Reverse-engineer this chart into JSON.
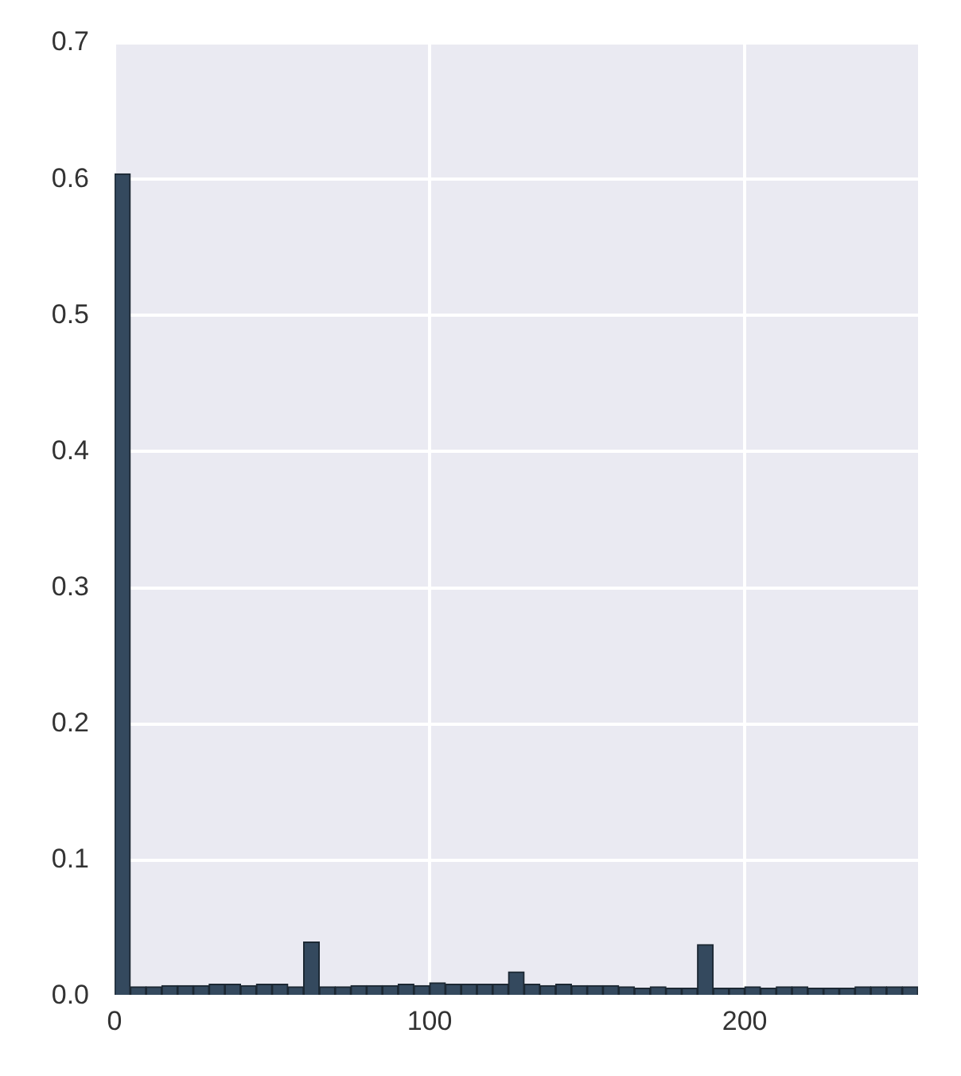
{
  "chart_data": {
    "type": "histogram",
    "color": "#34495e",
    "bins": [
      0,
      5,
      10,
      15,
      20,
      25,
      30,
      35,
      40,
      45,
      50,
      55,
      60,
      65,
      70,
      75,
      80,
      85,
      90,
      95,
      100,
      105,
      110,
      115,
      120,
      125,
      130,
      135,
      140,
      145,
      150,
      155,
      160,
      165,
      170,
      175,
      180,
      185,
      190,
      195,
      200,
      205,
      210,
      215,
      220,
      225,
      230,
      235,
      240,
      245,
      250,
      255
    ],
    "values": [
      0.604,
      0.007,
      0.007,
      0.008,
      0.008,
      0.008,
      0.009,
      0.009,
      0.008,
      0.009,
      0.009,
      0.007,
      0.04,
      0.007,
      0.007,
      0.008,
      0.008,
      0.008,
      0.009,
      0.008,
      0.01,
      0.009,
      0.009,
      0.009,
      0.009,
      0.018,
      0.009,
      0.008,
      0.009,
      0.008,
      0.008,
      0.008,
      0.007,
      0.006,
      0.007,
      0.006,
      0.006,
      0.038,
      0.006,
      0.006,
      0.007,
      0.006,
      0.007,
      0.007,
      0.006,
      0.006,
      0.006,
      0.007,
      0.007,
      0.007,
      0.007
    ],
    "xlim": [
      0,
      255
    ],
    "xticks": [
      0,
      100,
      200
    ],
    "ylim": [
      0,
      0.7
    ],
    "yticks": [
      {
        "value": 0,
        "label": "0.0"
      },
      0.1,
      0.2,
      0.3,
      0.4,
      0.5,
      0.6,
      0.7
    ],
    "grid": true
  }
}
